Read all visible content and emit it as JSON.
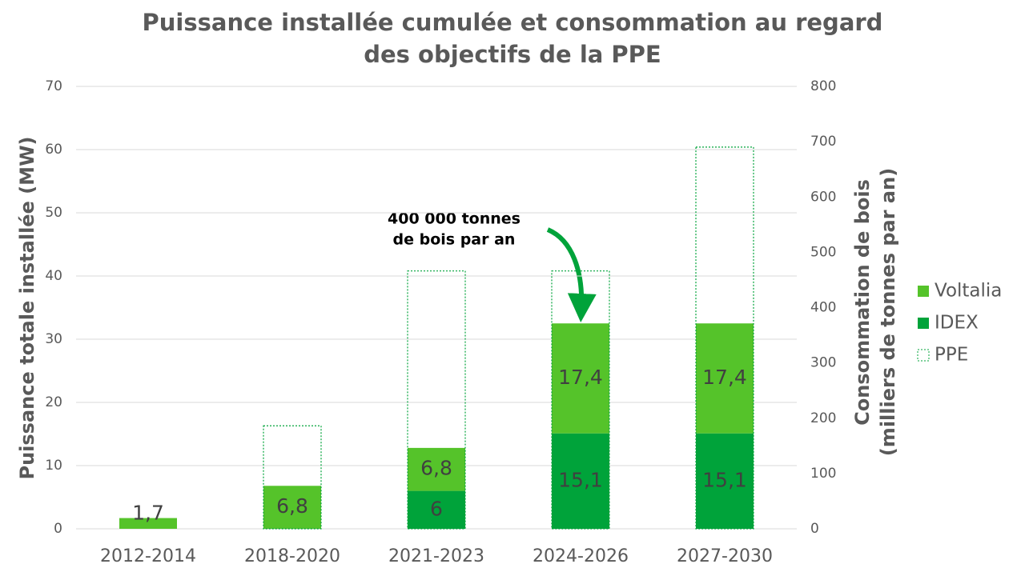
{
  "chart_data": {
    "type": "bar",
    "stacked": true,
    "title": [
      "Puissance installée cumulée et consommation au regard",
      "des objectifs de la PPE"
    ],
    "y_label": "Puissance totale installée (MW)",
    "y2_label": [
      "Consommation de bois",
      "(milliers de tonnes par an)"
    ],
    "annotation": [
      "400 000 tonnes",
      "de bois par an"
    ],
    "categories": [
      "2012-2014",
      "2018-2020",
      "2021-2023",
      "2024-2026",
      "2027-2030"
    ],
    "series": [
      {
        "name": "IDEX",
        "color": "#00a33a",
        "values": [
          null,
          null,
          6,
          15.1,
          15.1
        ],
        "value_labels": [
          null,
          null,
          "6",
          "15,1",
          "15,1"
        ]
      },
      {
        "name": "Voltalia",
        "color": "#55c32a",
        "values": [
          1.7,
          6.8,
          6.8,
          17.4,
          17.4
        ],
        "value_labels": [
          "1,7",
          "6,8",
          "6,8",
          "17,4",
          "17,4"
        ]
      },
      {
        "name": "PPE",
        "color": "#00a33a",
        "style": "dashed-outline",
        "values": [
          null,
          16.3,
          40.8,
          40.8,
          60.4
        ]
      }
    ],
    "ylim": [
      0,
      70
    ],
    "yticks": [
      0,
      10,
      20,
      30,
      40,
      50,
      60,
      70
    ],
    "y2lim": [
      0,
      800
    ],
    "y2ticks": [
      0,
      100,
      200,
      300,
      400,
      500,
      600,
      700,
      800
    ],
    "grid": true,
    "legend": "right"
  }
}
